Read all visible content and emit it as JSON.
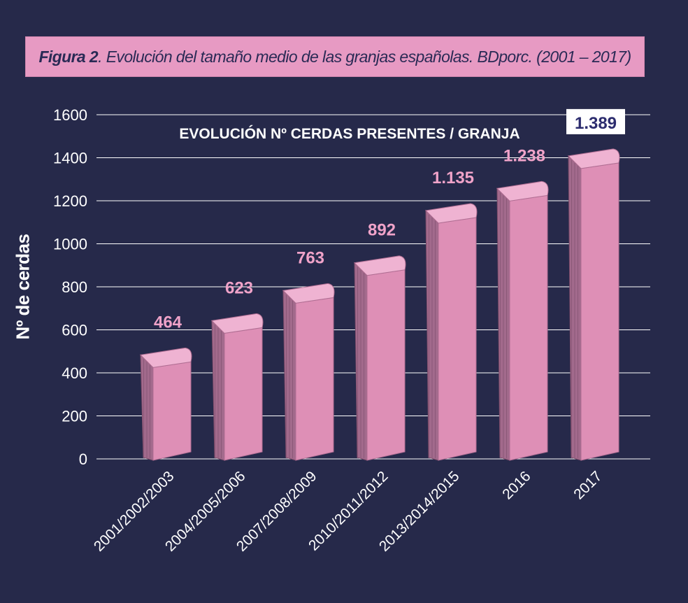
{
  "figure": {
    "number": "Figura 2",
    "caption": ". Evolución del tamaño medio de las granjas españolas. BDporc. (2001 – 2017)"
  },
  "colors": {
    "background": "#26294a",
    "banner": "#e79ac3",
    "bar_front": "#de8fb6",
    "bar_side": "#a26a8c",
    "bar_top": "#efb3d2",
    "value_label": "#f0a3c9",
    "grid": "#ffffff"
  },
  "chart_data": {
    "type": "bar",
    "title": "EVOLUCIÓN Nº CERDAS PRESENTES / GRANJA",
    "ylabel": "Nº de cerdas",
    "xlabel": "",
    "ylim": [
      0,
      1600
    ],
    "yticks": [
      "0",
      "200",
      "400",
      "600",
      "800",
      "1000",
      "1200",
      "1400",
      "1600"
    ],
    "grid": true,
    "categories": [
      "2001/2002/2003",
      "2004/2005/2006",
      "2007/2008/2009",
      "2010/2011/2012",
      "2013/2014/2015",
      "2016",
      "2017"
    ],
    "values": [
      464,
      623,
      763,
      892,
      1135,
      1238,
      1389
    ],
    "value_labels": [
      "464",
      "623",
      "763",
      "892",
      "1.135",
      "1.238",
      "1.389"
    ],
    "highlighted_index": 6
  }
}
